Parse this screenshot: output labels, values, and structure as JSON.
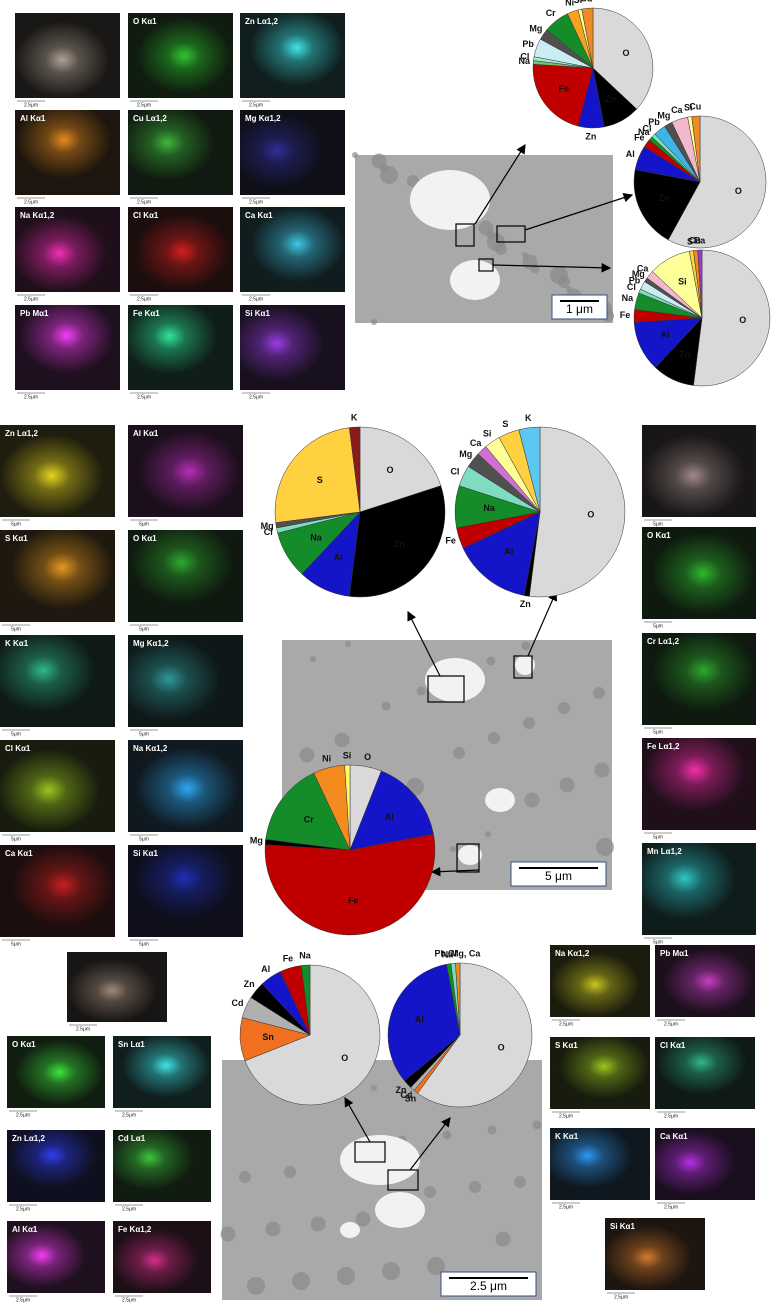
{
  "chart_data": [
    {
      "type": "pie",
      "categories": [
        "O",
        "Zn",
        "Zn",
        "Fe",
        "Na",
        "Cl",
        "Pb",
        "Mg",
        "Cr",
        "Ni",
        "Si",
        "Cu"
      ],
      "values": [
        37,
        10,
        7,
        22,
        1,
        1,
        5,
        3,
        7,
        3,
        1,
        3
      ],
      "colors": [
        "#d9d9d9",
        "#000000",
        "#1414c8",
        "#c00000",
        "#6fc36f",
        "#a8e6d8",
        "#c8eef2",
        "#505050",
        "#148c2a",
        "#f5a21f",
        "#ffff99",
        "#f08a24"
      ]
    },
    {
      "type": "pie",
      "categories": [
        "O",
        "Zn",
        "Al",
        "Fe",
        "Na",
        "Cl",
        "Pb",
        "Mg",
        "Ca",
        "Si",
        "Cu"
      ],
      "values": [
        58,
        20,
        6,
        2,
        1,
        1,
        3,
        2,
        4,
        1,
        2
      ],
      "colors": [
        "#d9d9d9",
        "#000000",
        "#1414c8",
        "#c00000",
        "#148c2a",
        "#7fdcc0",
        "#3cb4e6",
        "#505050",
        "#f2b8cc",
        "#ffff99",
        "#f08a24"
      ]
    },
    {
      "type": "pie",
      "categories": [
        "O",
        "Zn",
        "Al",
        "Fe",
        "Na",
        "Cl",
        "Pb",
        "Mg",
        "Ca",
        "Si",
        "S",
        "Cu",
        "Ba"
      ],
      "values": [
        52,
        10,
        12,
        3,
        4,
        1,
        2,
        1,
        2,
        10,
        1,
        1,
        1
      ],
      "colors": [
        "#d9d9d9",
        "#000000",
        "#1414c8",
        "#c00000",
        "#148c2a",
        "#7fdcc0",
        "#c8eef2",
        "#505050",
        "#f2b8cc",
        "#ffff99",
        "#ffd040",
        "#f08a24",
        "#9b3cc8"
      ]
    },
    {
      "type": "pie",
      "categories": [
        "O",
        "Zn",
        "Al",
        "Na",
        "Cl",
        "Mg",
        "S",
        "K"
      ],
      "values": [
        20,
        32,
        10,
        9,
        1,
        1,
        25,
        2
      ],
      "colors": [
        "#d9d9d9",
        "#000000",
        "#1414c8",
        "#148c2a",
        "#7fdcc0",
        "#505050",
        "#ffd040",
        "#8b1a1a"
      ]
    },
    {
      "type": "pie",
      "categories": [
        "O",
        "Zn",
        "Al",
        "Fe",
        "Na",
        "Cl",
        "Mg",
        "Ca",
        "Si",
        "S",
        "K"
      ],
      "values": [
        52,
        1,
        15,
        4,
        8,
        4,
        3,
        2,
        3,
        4,
        4
      ],
      "colors": [
        "#d9d9d9",
        "#000000",
        "#1414c8",
        "#c00000",
        "#148c2a",
        "#7fdcc0",
        "#505050",
        "#d070d0",
        "#ffff99",
        "#ffd040",
        "#5ac8f0"
      ]
    },
    {
      "type": "pie",
      "categories": [
        "O",
        "Al",
        "Fe",
        "Mg",
        "Cr",
        "Ni",
        "Si"
      ],
      "values": [
        6,
        16,
        54,
        1,
        16,
        6,
        1
      ],
      "colors": [
        "#d9d9d9",
        "#1414c8",
        "#c00000",
        "#000000",
        "#148c2a",
        "#f58a1f",
        "#ffff66"
      ]
    },
    {
      "type": "pie",
      "categories": [
        "O",
        "Sn",
        "Cd",
        "Zn",
        "Al",
        "Fe",
        "Na"
      ],
      "values": [
        69,
        10,
        5,
        4,
        5,
        5,
        2
      ],
      "colors": [
        "#d9d9d9",
        "#f07020",
        "#b0b0b0",
        "#000000",
        "#1414c8",
        "#c00000",
        "#148c2a"
      ]
    },
    {
      "type": "pie",
      "categories": [
        "O",
        "Sn",
        "Cd",
        "Zn",
        "Al",
        "Na",
        "Cl",
        "Pb, Mg, Ca"
      ],
      "values": [
        60,
        1,
        1,
        2,
        33,
        1,
        1,
        1
      ],
      "colors": [
        "#d9d9d9",
        "#f07020",
        "#b0b0b0",
        "#000000",
        "#1414c8",
        "#148c2a",
        "#7fdcc0",
        "#f08a24"
      ]
    }
  ],
  "maps": [
    {
      "scale": "2.5μm",
      "tiles": [
        {
          "color": "#b8a898"
        },
        {
          "label": "O Kα1",
          "color": "#30d030"
        },
        {
          "label": "Zn Lα1,2",
          "color": "#40f0f0"
        },
        {
          "label": "Al Kα1",
          "color": "#f09020"
        },
        {
          "label": "Cu Lα1,2",
          "color": "#40c040"
        },
        {
          "label": "Mg Kα1,2",
          "color": "#3030a0"
        },
        {
          "label": "Na Kα1,2",
          "color": "#ff30c0"
        },
        {
          "label": "Cl Kα1",
          "color": "#e02020"
        },
        {
          "label": "Ca Kα1",
          "color": "#40d0f0"
        },
        {
          "label": "Pb Mα1",
          "color": "#ff40ff"
        },
        {
          "label": "Fe Kα1",
          "color": "#30f0a0"
        },
        {
          "label": "Si Kα1",
          "color": "#a040f0"
        }
      ]
    },
    {
      "scale": "5μm",
      "tiles": [
        {
          "label": "Zn Lα1,2",
          "color": "#f0e020"
        },
        {
          "label": "Al Kα1",
          "color": "#c030c0"
        },
        {
          "label": "S Kα1",
          "color": "#f0a020"
        },
        {
          "label": "O Kα1",
          "color": "#30b030"
        },
        {
          "label": "K Kα1",
          "color": "#30c090"
        },
        {
          "label": "Mg Kα1,2",
          "color": "#30a0a0"
        },
        {
          "label": "Cl Kα1",
          "color": "#a0d020"
        },
        {
          "label": "Na Kα1,2",
          "color": "#30b0ff"
        },
        {
          "label": "Ca Kα1",
          "color": "#d02020"
        },
        {
          "label": "Si Kα1",
          "color": "#2030c0"
        }
      ]
    },
    {
      "scale": "5μm",
      "tiles": [
        {
          "color": "#a89090"
        },
        {
          "label": "O Kα1",
          "color": "#30c030"
        },
        {
          "label": "Cr Lα1,2",
          "color": "#30b030"
        },
        {
          "label": "Fe Lα1,2",
          "color": "#ff30b0"
        },
        {
          "label": "Mn Lα1,2",
          "color": "#30d0d0"
        }
      ]
    },
    {
      "scale": "2.5μm",
      "tiles": [
        {
          "color": "#a89080"
        },
        {
          "label": "O Kα1",
          "color": "#40f040"
        },
        {
          "label": "Sn Lα1",
          "color": "#40f0f0"
        },
        {
          "label": "Zn Lα1,2",
          "color": "#3040ff"
        },
        {
          "label": "Cd Lα1",
          "color": "#40d040"
        },
        {
          "label": "Al Kα1",
          "color": "#ff40ff"
        },
        {
          "label": "Fe Kα1,2",
          "color": "#e03090"
        }
      ]
    },
    {
      "scale": "2.5μm",
      "tiles": [
        {
          "label": "Na Kα1,2",
          "color": "#d0d020"
        },
        {
          "label": "Pb Mα1",
          "color": "#d040d0"
        },
        {
          "label": "S Kα1",
          "color": "#a0d020"
        },
        {
          "label": "Cl Kα1",
          "color": "#30c090"
        },
        {
          "label": "K Kα1",
          "color": "#30a0ff"
        },
        {
          "label": "Ca Kα1",
          "color": "#c030f0"
        },
        {
          "label": "Si Kα1",
          "color": "#e08030"
        }
      ]
    }
  ],
  "sem_images": [
    {
      "scale": "1 μm"
    },
    {
      "scale": "5 μm"
    },
    {
      "scale": "2.5 μm"
    }
  ]
}
